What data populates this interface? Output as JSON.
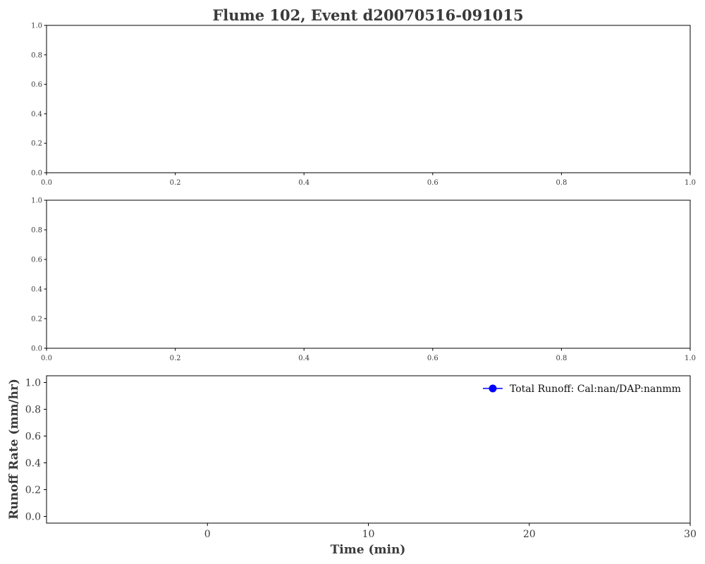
{
  "figure": {
    "title": "Flume 102, Event d20070516-091015"
  },
  "chart_data": [
    {
      "type": "line",
      "title": "",
      "xlabel": "",
      "ylabel": "",
      "xlim": [
        0,
        1
      ],
      "ylim": [
        0,
        1
      ],
      "xticks": [
        "0.0",
        "0.2",
        "0.4",
        "0.6",
        "0.8",
        "1.0"
      ],
      "yticks": [
        "0.0",
        "0.2",
        "0.4",
        "0.6",
        "0.8",
        "1.0"
      ],
      "series": [],
      "grid": false
    },
    {
      "type": "line",
      "title": "",
      "xlabel": "",
      "ylabel": "",
      "xlim": [
        0,
        1
      ],
      "ylim": [
        0,
        1
      ],
      "xticks": [
        "0.0",
        "0.2",
        "0.4",
        "0.6",
        "0.8",
        "1.0"
      ],
      "yticks": [
        "0.0",
        "0.2",
        "0.4",
        "0.6",
        "0.8",
        "1.0"
      ],
      "series": [],
      "grid": false
    },
    {
      "type": "line",
      "title": "",
      "xlabel": "Time (min)",
      "ylabel": "Runoff Rate (mm/hr)",
      "xlim": [
        -10,
        30
      ],
      "ylim": [
        -0.05,
        1.05
      ],
      "xticks": [
        "0",
        "10",
        "20",
        "30"
      ],
      "yticks": [
        "0.0",
        "0.2",
        "0.4",
        "0.6",
        "0.8",
        "1.0"
      ],
      "series": [
        {
          "name": "Total Runoff: Cal:nan/DAP:nanmm",
          "color": "#0000ff",
          "marker": "circle",
          "x": [],
          "y": []
        }
      ],
      "legend": "upper right",
      "grid": false
    }
  ]
}
